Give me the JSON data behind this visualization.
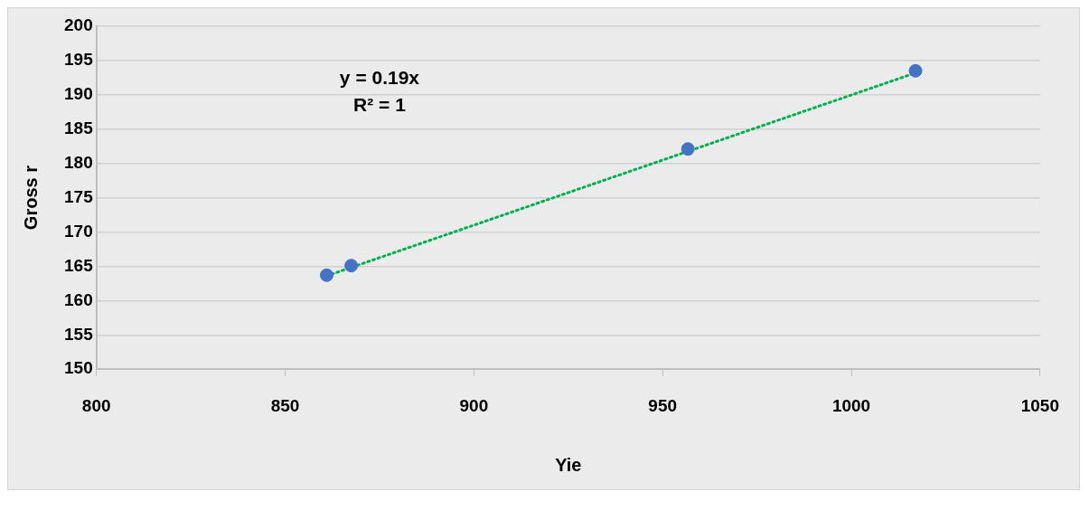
{
  "chart_data": {
    "type": "scatter",
    "xlabel": "Yie",
    "ylabel": "Gross r",
    "xlim": [
      800,
      1050
    ],
    "xticks": [
      800,
      850,
      900,
      950,
      1000,
      1050
    ],
    "ylim": [
      150,
      200
    ],
    "yticks": [
      150,
      155,
      160,
      165,
      170,
      175,
      180,
      185,
      190,
      195,
      200
    ],
    "grid": "y",
    "marker": "circle",
    "legend": false,
    "annotations": [
      "y = 0.19x",
      "R² = 1"
    ],
    "series": [
      {
        "color": "#4472c4",
        "x": [
          861,
          867.5,
          956.7,
          1017
        ],
        "values": [
          163.7,
          165.1,
          182.1,
          193.5
        ]
      },
      {
        "type": "line",
        "color": "#00b050",
        "line_style": "dotted",
        "marker": "none",
        "x": [
          861,
          1017
        ],
        "values": [
          163.6,
          193.2
        ]
      }
    ]
  }
}
